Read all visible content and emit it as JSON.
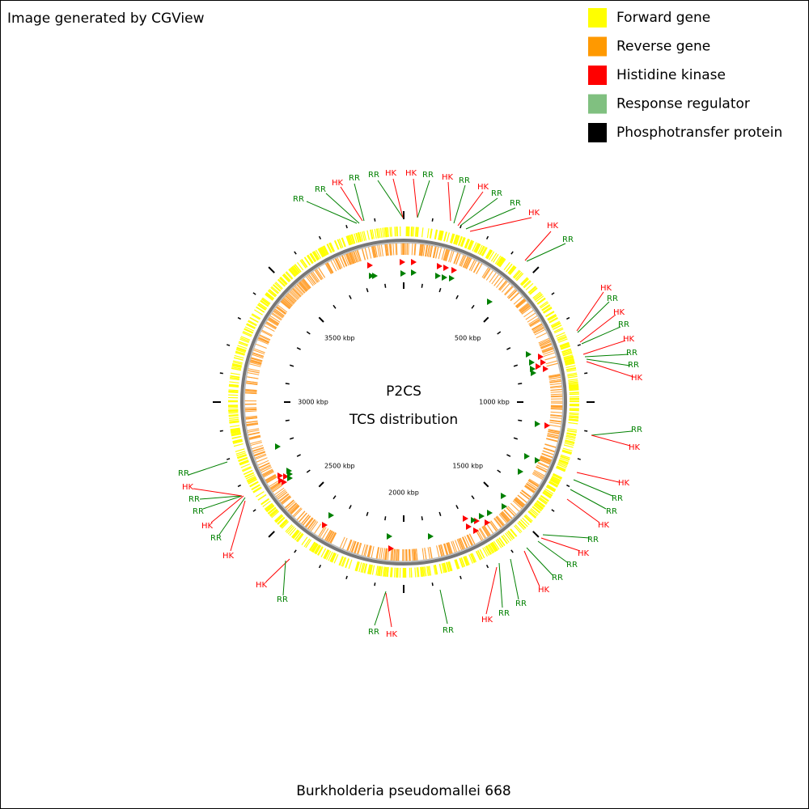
{
  "header": {
    "title": "Image generated by CGView"
  },
  "legend": {
    "items": [
      {
        "label": "Forward gene",
        "color": "#ffff00"
      },
      {
        "label": "Reverse gene",
        "color": "#ff9900"
      },
      {
        "label": "Histidine kinase",
        "color": "#ff0000"
      },
      {
        "label": "Response regulator",
        "color": "#80c080"
      },
      {
        "label": "Phosphotransfer protein",
        "color": "#000000"
      }
    ]
  },
  "center": {
    "title": "P2CS",
    "subtitle": "TCS distribution"
  },
  "scale_labels": [
    "500 kbp",
    "1000 kbp",
    "1500 kbp",
    "2000 kbp",
    "2500 kbp",
    "3000 kbp",
    "3500 kbp"
  ],
  "features": [
    {
      "label": "RR",
      "color": "#008000"
    },
    {
      "label": "RR",
      "color": "#008000"
    },
    {
      "label": "HK",
      "color": "#ff0000"
    },
    {
      "label": "RR",
      "color": "#008000"
    },
    {
      "label": "RR",
      "color": "#008000"
    },
    {
      "label": "HK",
      "color": "#ff0000"
    },
    {
      "label": "HK",
      "color": "#ff0000"
    },
    {
      "label": "RR",
      "color": "#008000"
    },
    {
      "label": "HK",
      "color": "#ff0000"
    },
    {
      "label": "RR",
      "color": "#008000"
    },
    {
      "label": "HK",
      "color": "#ff0000"
    },
    {
      "label": "RR",
      "color": "#008000"
    },
    {
      "label": "RR",
      "color": "#008000"
    },
    {
      "label": "HK",
      "color": "#ff0000"
    },
    {
      "label": "HK",
      "color": "#ff0000"
    },
    {
      "label": "RR",
      "color": "#008000"
    },
    {
      "label": "HK",
      "color": "#ff0000"
    },
    {
      "label": "RR",
      "color": "#008000"
    },
    {
      "label": "HK",
      "color": "#ff0000"
    },
    {
      "label": "RR",
      "color": "#008000"
    },
    {
      "label": "HK",
      "color": "#ff0000"
    },
    {
      "label": "RR",
      "color": "#008000"
    },
    {
      "label": "RR",
      "color": "#008000"
    },
    {
      "label": "HK",
      "color": "#ff0000"
    },
    {
      "label": "RR",
      "color": "#008000"
    },
    {
      "label": "HK",
      "color": "#ff0000"
    },
    {
      "label": "HK",
      "color": "#ff0000"
    },
    {
      "label": "RR",
      "color": "#008000"
    },
    {
      "label": "RR",
      "color": "#008000"
    },
    {
      "label": "HK",
      "color": "#ff0000"
    },
    {
      "label": "RR",
      "color": "#008000"
    },
    {
      "label": "HK",
      "color": "#ff0000"
    },
    {
      "label": "RR",
      "color": "#008000"
    },
    {
      "label": "RR",
      "color": "#008000"
    },
    {
      "label": "HK",
      "color": "#ff0000"
    },
    {
      "label": "RR",
      "color": "#008000"
    },
    {
      "label": "RR",
      "color": "#008000"
    },
    {
      "label": "HK",
      "color": "#ff0000"
    },
    {
      "label": "RR",
      "color": "#008000"
    },
    {
      "label": "HK",
      "color": "#ff0000"
    },
    {
      "label": "RR",
      "color": "#008000"
    },
    {
      "label": "HK",
      "color": "#ff0000"
    },
    {
      "label": "RR",
      "color": "#008000"
    },
    {
      "label": "HK",
      "color": "#ff0000"
    },
    {
      "label": "RR",
      "color": "#008000"
    },
    {
      "label": "HK",
      "color": "#ff0000"
    },
    {
      "label": "RR",
      "color": "#008000"
    },
    {
      "label": "RR",
      "color": "#008000"
    },
    {
      "label": "HK",
      "color": "#ff0000"
    },
    {
      "label": "RR",
      "color": "#008000"
    }
  ],
  "footer": {
    "organism": "Burkholderia pseudomallei 668"
  }
}
